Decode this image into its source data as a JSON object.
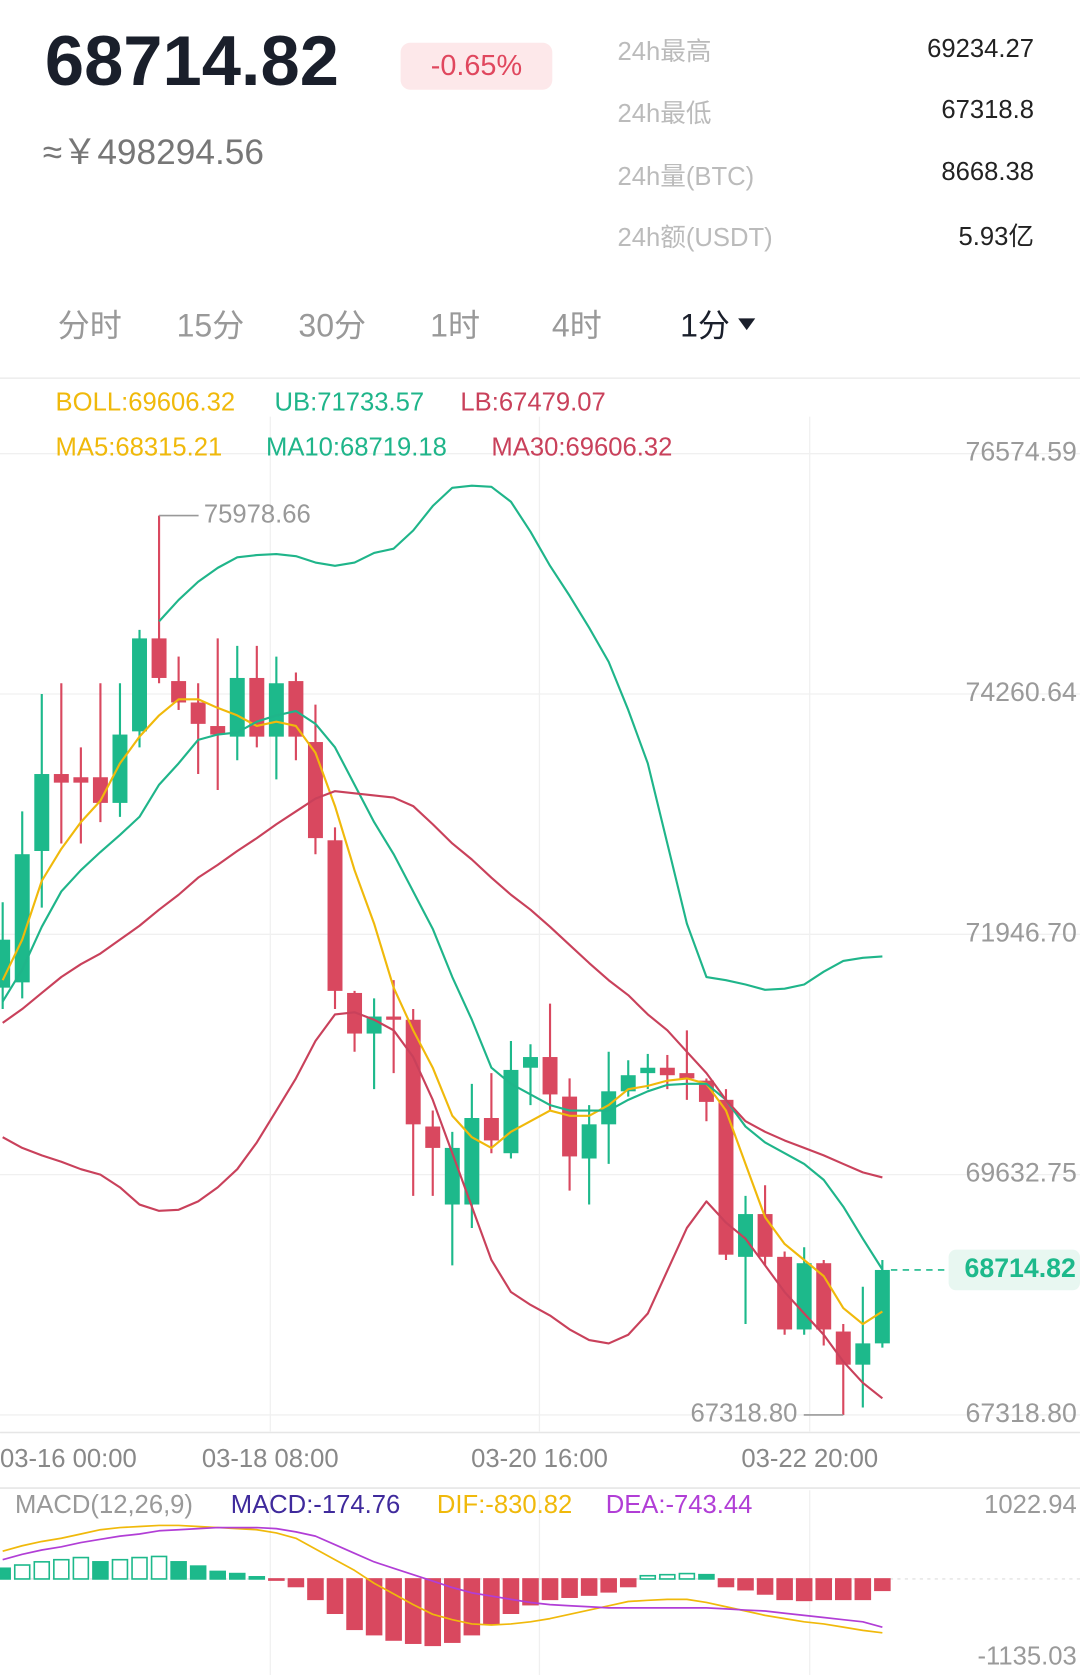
{
  "header": {
    "price": "68714.82",
    "change": "-0.65%",
    "cny": "≈￥498294.56",
    "stats": [
      {
        "label": "24h最高",
        "value": "69234.27"
      },
      {
        "label": "24h最低",
        "value": "67318.8"
      },
      {
        "label": "24h量(BTC)",
        "value": "8668.38"
      },
      {
        "label": "24h额(USDT)",
        "value": "5.93亿"
      }
    ]
  },
  "tabs": [
    "分时",
    "15分",
    "30分",
    "1时",
    "4时",
    "1分"
  ],
  "chart_data": [
    {
      "type": "candlestick",
      "boll_label": "BOLL:69606.32",
      "boll_color": "#f0b90b",
      "ylim": [
        67160,
        76880
      ],
      "yticks": [
        76574.59,
        74260.64,
        {
          "value": 71946.7,
          "label": "71946.70"
        },
        69632.75,
        {
          "value": 67318.8,
          "label": "67318.80"
        }
      ],
      "xtick_labels": [
        "03-16 00:00",
        "03-18 08:00",
        "03-20 16:00",
        "03-22 20:00"
      ],
      "grid": true,
      "up_color": "#1db98b",
      "down_color": "#d9485f",
      "candles": {
        "open": [
          71433,
          71484,
          72749,
          73490,
          73459,
          73459,
          73212,
          73901,
          74796,
          74385,
          74179,
          73952,
          73850,
          74415,
          73850,
          74385,
          73798,
          72852,
          71382,
          70991,
          71155,
          71124,
          70096,
          69345,
          69345,
          70178,
          69839,
          70662,
          70765,
          70384,
          69788,
          70117,
          70435,
          70610,
          70662,
          70610,
          70538,
          70353,
          68841,
          69253,
          68841,
          68142,
          68780,
          68122,
          67803,
          68008
        ],
        "high": [
          72255,
          73130,
          74261,
          74364,
          73747,
          74364,
          74364,
          74878,
          75978.66,
          74621,
          74364,
          74796,
          74724,
          74724,
          74621,
          74467,
          74158,
          72976,
          71402,
          71330,
          71505,
          71227,
          70250,
          70045,
          70507,
          70610,
          70919,
          70888,
          71279,
          70559,
          70302,
          70816,
          70734,
          70795,
          70785,
          71022,
          70559,
          70456,
          69428,
          69530,
          68893,
          68934,
          68811,
          68194,
          68553,
          68811
        ],
        "low": [
          71227,
          71330,
          72204,
          72821,
          72821,
          73027,
          73078,
          73747,
          74364,
          74107,
          73490,
          73336,
          73623,
          73747,
          73438,
          73623,
          72718,
          71227,
          70816,
          70456,
          70610,
          69428,
          69428,
          68759,
          69119,
          69839,
          69788,
          70302,
          70250,
          69479,
          69345,
          69736,
          70384,
          70456,
          70456,
          70353,
          70147,
          68811,
          68194,
          68759,
          68091,
          68091,
          67988,
          67318.8,
          67391,
          67967
        ],
        "close": [
          71895,
          72718,
          73490,
          73407,
          73407,
          73212,
          73870,
          74796,
          74415,
          74179,
          73973,
          73870,
          74415,
          73850,
          74364,
          73850,
          72873,
          71402,
          70991,
          71155,
          71124,
          70117,
          69890,
          69890,
          70178,
          69962,
          70641,
          70765,
          70405,
          69808,
          70117,
          70435,
          70590,
          70662,
          70590,
          70559,
          70333,
          68862,
          69253,
          68841,
          68142,
          68780,
          68142,
          67803,
          68008,
          68714.82
        ]
      },
      "series": [
        {
          "name": "MA5:68315.21",
          "color": "#f0b90b",
          "values": [
            71505,
            71896,
            72461,
            72770,
            73027,
            73233,
            73593,
            73850,
            74055,
            74210,
            74210,
            74127,
            74055,
            73953,
            73994,
            73953,
            73695,
            73181,
            72564,
            72050,
            71433,
            71022,
            70662,
            70199,
            69993,
            69890,
            70045,
            70147,
            70250,
            70199,
            70199,
            70302,
            70456,
            70487,
            70538,
            70559,
            70507,
            70250,
            69736,
            69222,
            68965,
            68811,
            68656,
            68348,
            68194,
            68315.21
          ]
        },
        {
          "name": "MA10:68719.18",
          "color": "#1fb58a",
          "values": [
            71299,
            71608,
            72019,
            72359,
            72564,
            72739,
            72904,
            73078,
            73387,
            73593,
            73819,
            73870,
            73891,
            73994,
            74055,
            74097,
            73973,
            73747,
            73387,
            73027,
            72718,
            72359,
            71999,
            71536,
            71124,
            70662,
            70507,
            70405,
            70302,
            70250,
            70250,
            70250,
            70353,
            70435,
            70497,
            70507,
            70507,
            70353,
            70096,
            69942,
            69839,
            69736,
            69582,
            69325,
            69016,
            68719.18
          ]
        },
        {
          "name": "MA30:69606.32",
          "color": "#c9415b",
          "values": [
            71094,
            71227,
            71382,
            71536,
            71659,
            71762,
            71896,
            72029,
            72184,
            72328,
            72492,
            72616,
            72749,
            72873,
            73006,
            73130,
            73253,
            73325,
            73305,
            73284,
            73264,
            73181,
            73006,
            72821,
            72667,
            72492,
            72328,
            72184,
            72019,
            71844,
            71670,
            71505,
            71361,
            71176,
            71022,
            70816,
            70610,
            70353,
            70147,
            70045,
            69962,
            69890,
            69818,
            69736,
            69654,
            69606.32
          ]
        },
        {
          "name": "UB:71733.57",
          "color": "#1fb58a",
          "values": [
            null,
            null,
            null,
            null,
            null,
            null,
            null,
            null,
            74960,
            75166,
            75341,
            75475,
            75577,
            75598,
            75608,
            75588,
            75526,
            75495,
            75526,
            75619,
            75660,
            75835,
            76071,
            76246,
            76266,
            76256,
            76112,
            75824,
            75495,
            75207,
            74899,
            74570,
            74107,
            73593,
            72821,
            72050,
            71536,
            71505,
            71464,
            71412,
            71423,
            71464,
            71587,
            71690,
            71721,
            71733.57
          ]
        },
        {
          "name": "LB:67479.07",
          "color": "#c9415b",
          "values": [
            69993,
            69890,
            69818,
            69757,
            69685,
            69633,
            69510,
            69345,
            69284,
            69294,
            69376,
            69510,
            69685,
            69942,
            70250,
            70559,
            70919,
            71176,
            71196,
            71124,
            71022,
            70765,
            70353,
            69839,
            69325,
            68811,
            68502,
            68379,
            68276,
            68142,
            68039,
            68008,
            68091,
            68296,
            68708,
            69119,
            69376,
            69171,
            69016,
            68759,
            68502,
            68296,
            68091,
            67834,
            67628,
            67479.07
          ]
        }
      ],
      "high_label": 75978.66,
      "low_label": {
        "value": 67318.8,
        "label": "67318.80"
      },
      "last_price": 68714.82
    },
    {
      "type": "macd",
      "title": "MACD(12,26,9)",
      "ylim": [
        -1135.03,
        1022.94
      ],
      "yticks": [
        1022.94,
        -1135.03
      ],
      "up_color": "#1db98b",
      "down_color": "#d9485f",
      "series": [
        {
          "name": "MACD:-174.76",
          "color": "#3f2a9c",
          "values": [
            165,
            215,
            264,
            297,
            330,
            264,
            297,
            330,
            347,
            264,
            198,
            116,
            83,
            33,
            -17,
            -116,
            -314,
            -528,
            -776,
            -858,
            -941,
            -990,
            -1023,
            -974,
            -858,
            -693,
            -528,
            -396,
            -314,
            -281,
            -248,
            -198,
            -116,
            50,
            66,
            83,
            66,
            -116,
            -165,
            -231,
            -314,
            -330,
            -314,
            -314,
            -314,
            -174.76
          ]
        },
        {
          "name": "DIF:-830.82",
          "color": "#f0b90b",
          "values": [
            429,
            512,
            578,
            627,
            693,
            759,
            792,
            809,
            825,
            825,
            809,
            792,
            776,
            759,
            710,
            627,
            462,
            297,
            132,
            -66,
            -231,
            -396,
            -545,
            -627,
            -693,
            -710,
            -693,
            -660,
            -611,
            -545,
            -479,
            -413,
            -347,
            -330,
            -314,
            -314,
            -363,
            -429,
            -495,
            -561,
            -611,
            -660,
            -693,
            -743,
            -792,
            -830.82
          ]
        },
        {
          "name": "DEA:-743.44",
          "color": "#b13ed6",
          "values": [
            297,
            380,
            446,
            495,
            561,
            611,
            660,
            693,
            743,
            759,
            776,
            792,
            792,
            792,
            776,
            726,
            660,
            528,
            396,
            264,
            165,
            66,
            -33,
            -132,
            -215,
            -264,
            -314,
            -363,
            -396,
            -413,
            -429,
            -446,
            -446,
            -446,
            -446,
            -446,
            -446,
            -462,
            -479,
            -495,
            -528,
            -561,
            -594,
            -627,
            -660,
            -743.44
          ]
        }
      ]
    }
  ]
}
